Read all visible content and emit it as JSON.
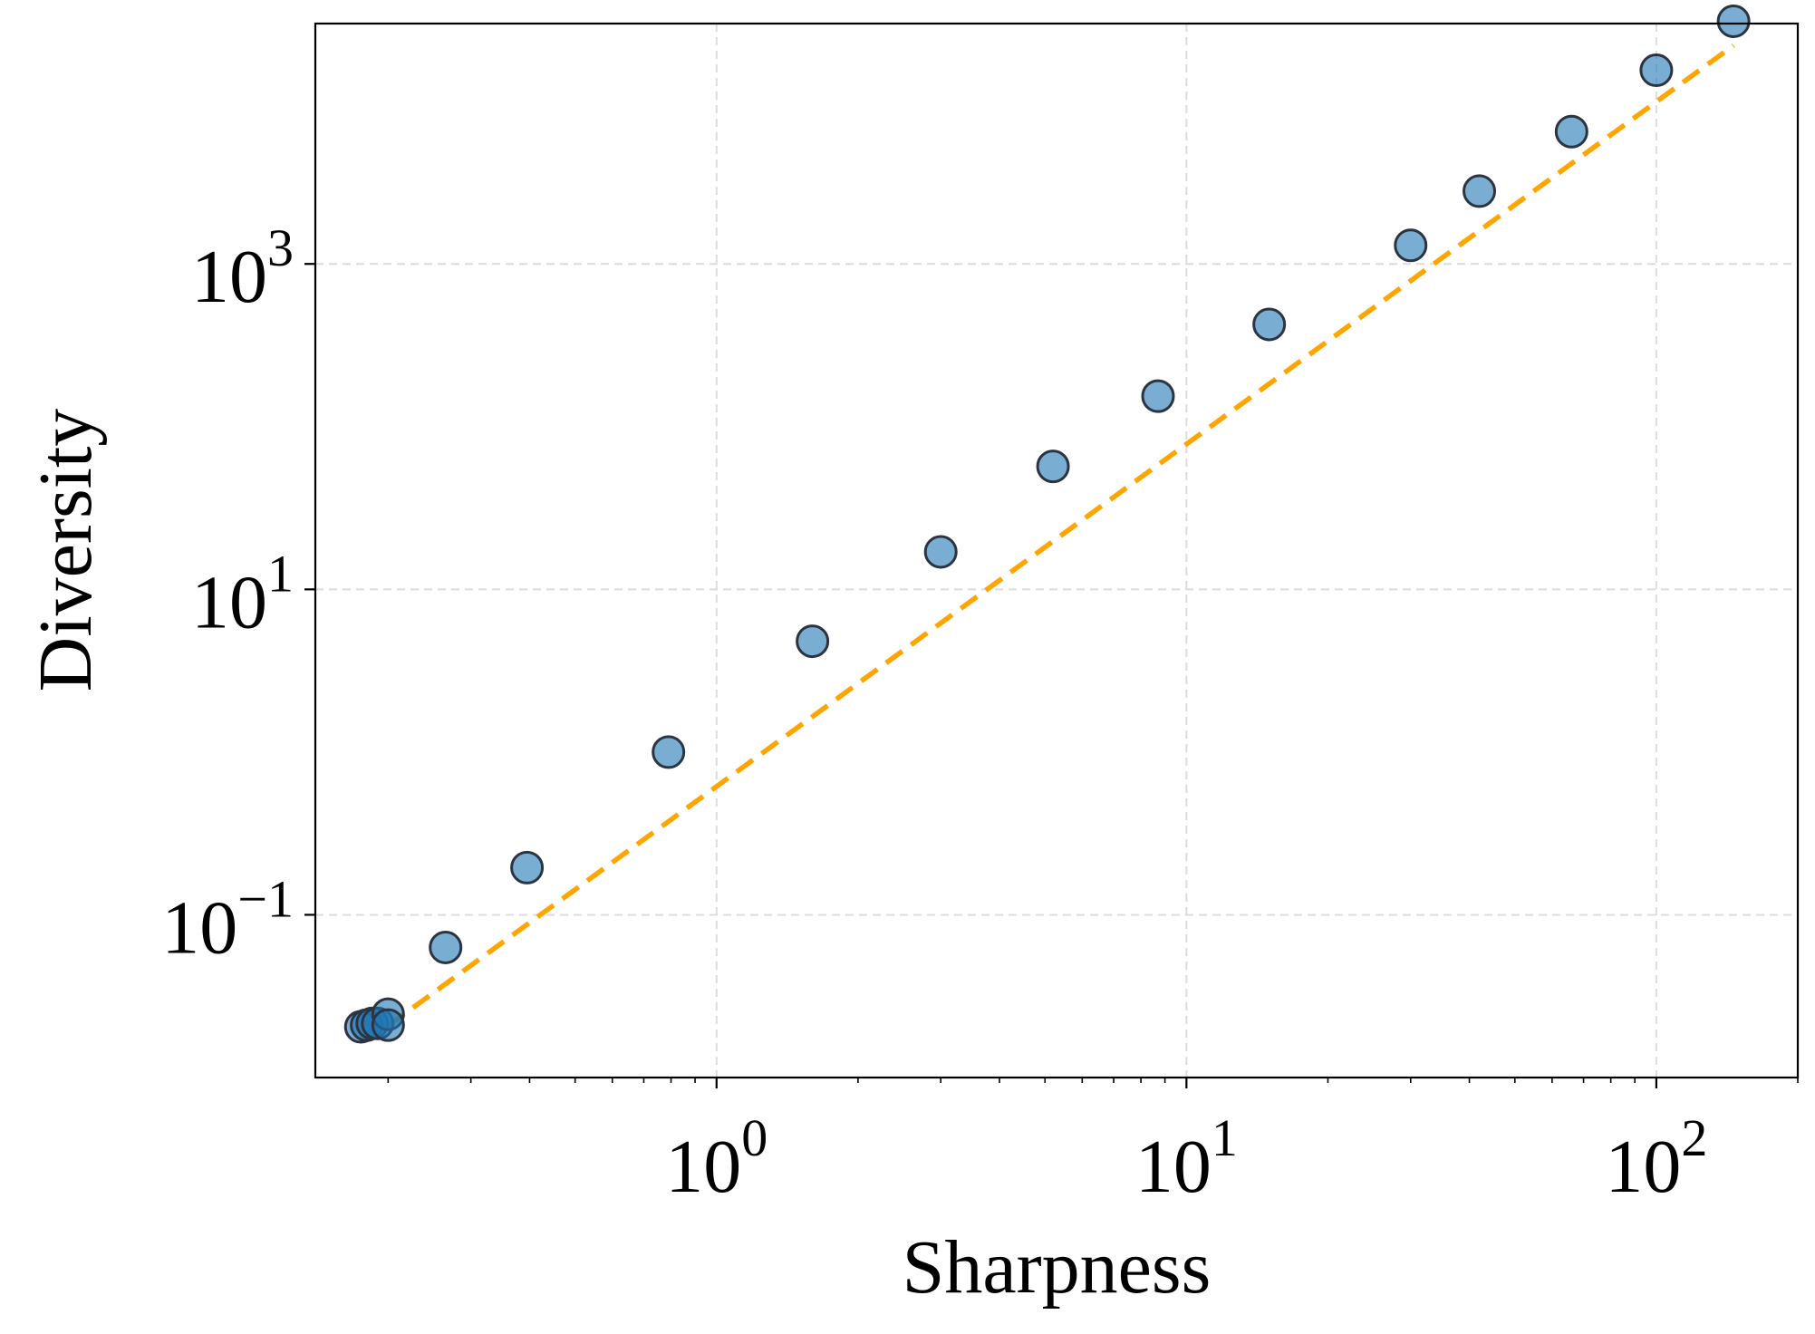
{
  "chart_data": {
    "type": "scatter",
    "title": "",
    "xlabel": "Sharpness",
    "ylabel": "Diversity",
    "xscale": "log",
    "yscale": "log",
    "xlim": [
      0.14,
      200
    ],
    "ylim": [
      0.01,
      30000
    ],
    "grid": true,
    "x_ticks": [
      {
        "value": 1,
        "base": "10",
        "exp": "0"
      },
      {
        "value": 10,
        "base": "10",
        "exp": "1"
      },
      {
        "value": 100,
        "base": "10",
        "exp": "2"
      }
    ],
    "y_ticks": [
      {
        "value": 0.1,
        "base": "10",
        "exp": "−1"
      },
      {
        "value": 10,
        "base": "10",
        "exp": "1"
      },
      {
        "value": 1000,
        "base": "10",
        "exp": "3"
      }
    ],
    "series": [
      {
        "name": "points",
        "kind": "scatter",
        "color": "#1f77b4",
        "edge_color": "#2b3440",
        "points": [
          {
            "x": 0.175,
            "y": 0.0205
          },
          {
            "x": 0.18,
            "y": 0.021
          },
          {
            "x": 0.185,
            "y": 0.0215
          },
          {
            "x": 0.19,
            "y": 0.0215
          },
          {
            "x": 0.2,
            "y": 0.0245
          },
          {
            "x": 0.2,
            "y": 0.021
          },
          {
            "x": 0.265,
            "y": 0.063
          },
          {
            "x": 0.395,
            "y": 0.195
          },
          {
            "x": 0.79,
            "y": 1.0
          },
          {
            "x": 1.6,
            "y": 4.8
          },
          {
            "x": 3.0,
            "y": 17
          },
          {
            "x": 5.2,
            "y": 57
          },
          {
            "x": 8.7,
            "y": 154
          },
          {
            "x": 15,
            "y": 425
          },
          {
            "x": 30,
            "y": 1300
          },
          {
            "x": 42,
            "y": 2800
          },
          {
            "x": 66,
            "y": 6500
          },
          {
            "x": 100,
            "y": 15500
          },
          {
            "x": 146,
            "y": 31000
          }
        ]
      },
      {
        "name": "fit",
        "kind": "line",
        "style": "dashed",
        "color": "#ffa500",
        "x_range": [
          0.2,
          146
        ],
        "y_range": [
          0.0208,
          22000
        ]
      }
    ]
  }
}
